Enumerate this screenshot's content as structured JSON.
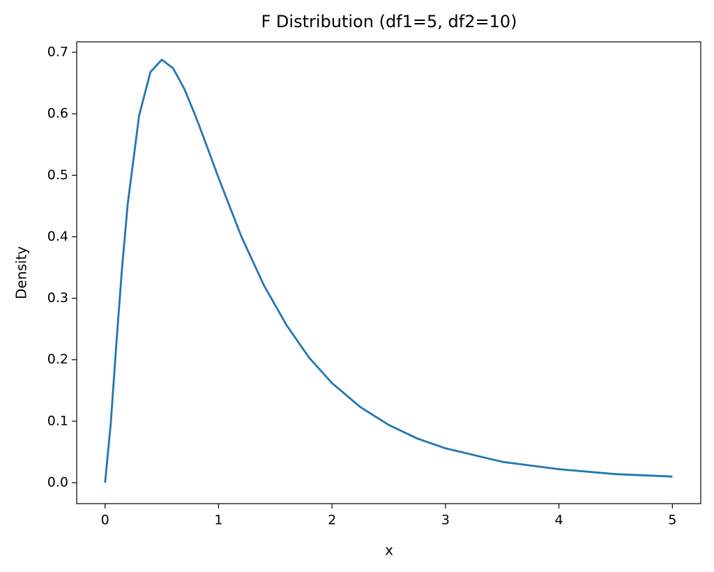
{
  "chart_data": {
    "type": "line",
    "title": "F Distribution (df1=5, df2=10)",
    "x_label": "x",
    "y_label": "Density",
    "x": [
      0,
      0.05,
      0.1,
      0.15,
      0.2,
      0.3,
      0.4,
      0.5,
      0.6,
      0.7,
      0.8,
      0.9,
      1.0,
      1.2,
      1.4,
      1.6,
      1.8,
      2.0,
      2.25,
      2.5,
      2.75,
      3.0,
      3.5,
      4.0,
      4.5,
      5.0
    ],
    "values": [
      0,
      0.096,
      0.227,
      0.35,
      0.454,
      0.597,
      0.668,
      0.688,
      0.674,
      0.64,
      0.595,
      0.546,
      0.496,
      0.401,
      0.321,
      0.256,
      0.203,
      0.162,
      0.123,
      0.094,
      0.072,
      0.056,
      0.034,
      0.022,
      0.014,
      0.01
    ],
    "color": "#1f77b4",
    "xlim": [
      -0.25,
      5.25
    ],
    "xticks": [
      0,
      1,
      2,
      3,
      4,
      5
    ],
    "ylim": [
      -0.034,
      0.717
    ],
    "yticks": [
      {
        "value": 0,
        "label": "0.0"
      },
      0.1,
      0.2,
      0.3,
      0.4,
      0.5,
      0.6,
      0.7
    ],
    "grid": false
  }
}
